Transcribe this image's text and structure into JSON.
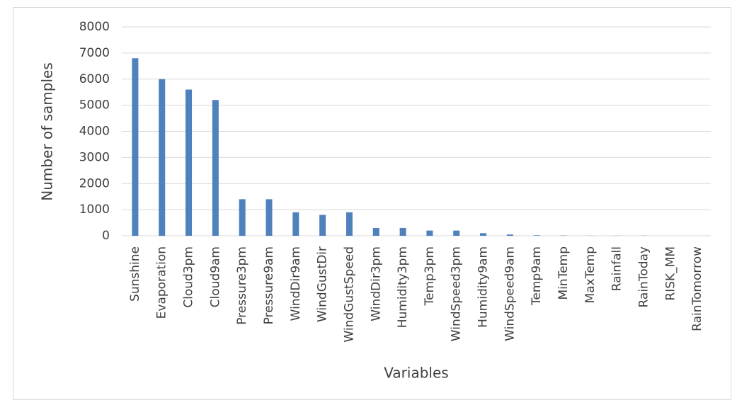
{
  "chart_data": {
    "type": "bar",
    "x_label": "Variables",
    "y_label": "Number of samples",
    "categories": [
      "Sunshine",
      "Evaporation",
      "Cloud3pm",
      "Cloud9am",
      "Pressure3pm",
      "Pressure9am",
      "WindDir9am",
      "WindGustDir",
      "WindGustSpeed",
      "WindDir3pm",
      "Humidity3pm",
      "Temp3pm",
      "WindSpeed3pm",
      "Humidity9am",
      "WindSpeed9am",
      "Temp9am",
      "MinTemp",
      "MaxTemp",
      "Rainfall",
      "RainToday",
      "RISK_MM",
      "RainTomorrow"
    ],
    "values": [
      6800,
      6000,
      5600,
      5200,
      1400,
      1400,
      900,
      800,
      900,
      300,
      300,
      200,
      200,
      100,
      50,
      20,
      10,
      5,
      5,
      5,
      0,
      0
    ],
    "color": "#4f81bd",
    "ylim": [
      0,
      8000
    ],
    "yticks": [
      0,
      1000,
      2000,
      3000,
      4000,
      5000,
      6000,
      7000,
      8000
    ],
    "grid": true
  }
}
